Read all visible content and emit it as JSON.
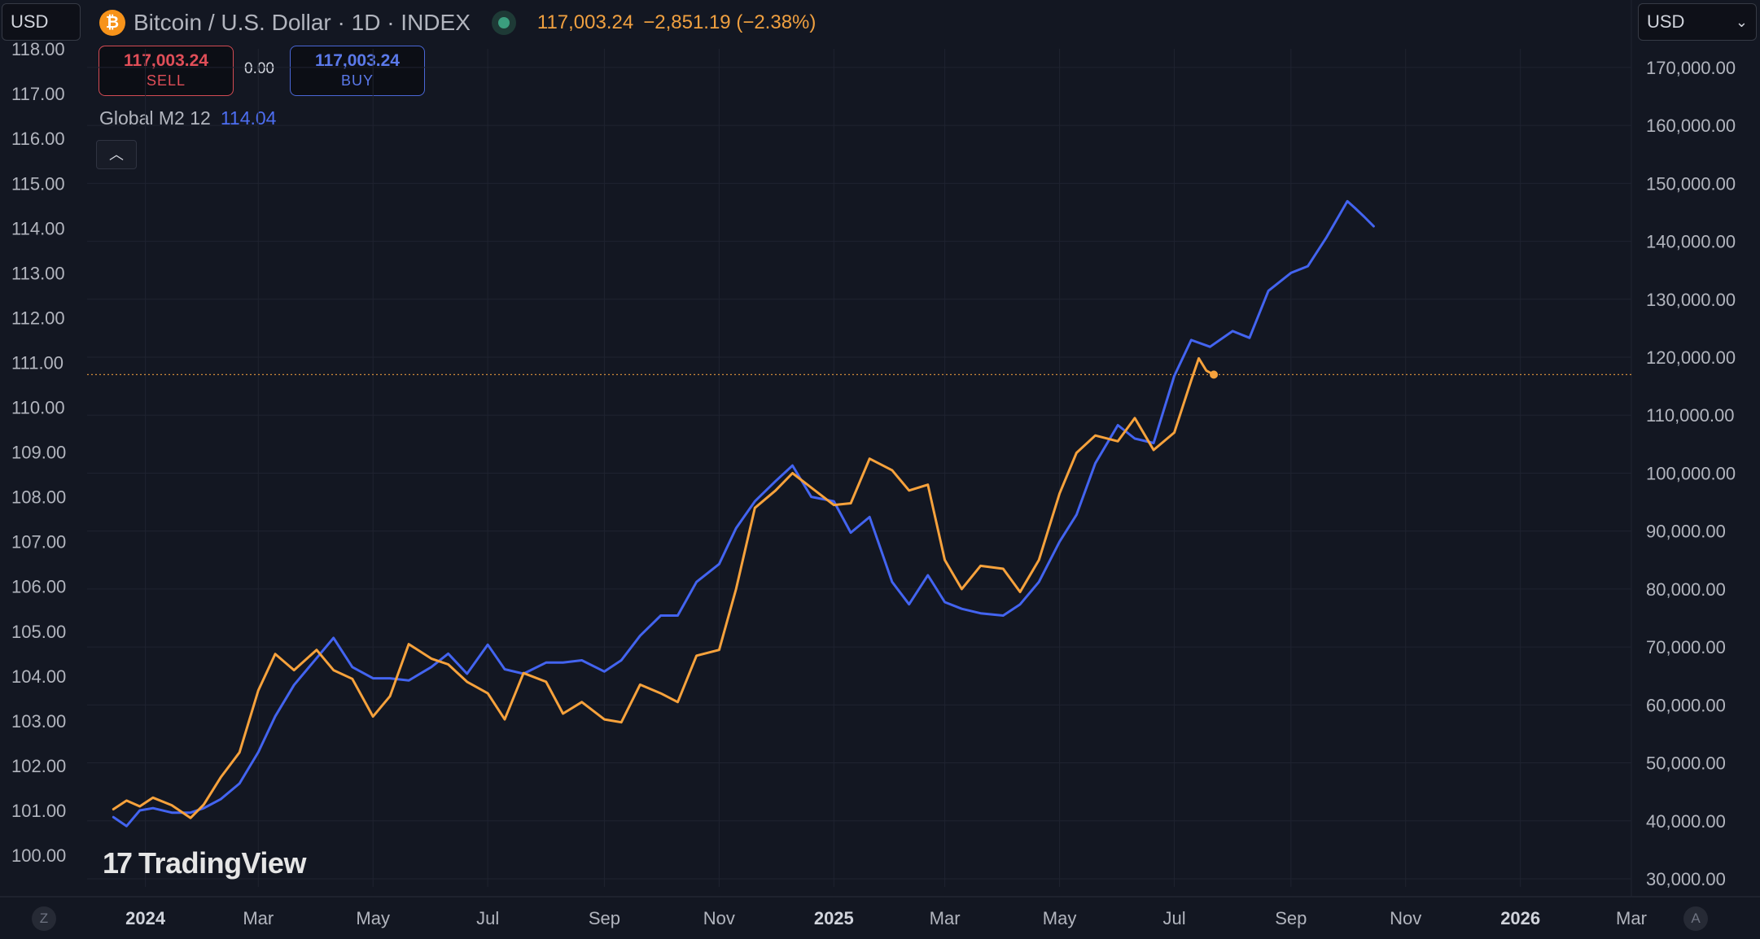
{
  "currency_left": "USD",
  "currency_right": "USD",
  "header": {
    "title": "Bitcoin / U.S. Dollar · 1D · INDEX",
    "btc_icon": "bitcoin-icon",
    "price": "117,003.24",
    "change": "−2,851.19 (−2.38%)"
  },
  "trade": {
    "sell_price": "117,003.24",
    "sell_label": "SELL",
    "spread": "0.00",
    "buy_price": "117,003.24",
    "buy_label": "BUY"
  },
  "indicator": {
    "name": "Global M2 12",
    "value": "114.04"
  },
  "collapse_icon": "chevron-up-icon",
  "logo_text": "TradingView",
  "corner_left": "Z",
  "corner_right": "A",
  "chart_data": {
    "type": "line",
    "background": "#131722",
    "grid": true,
    "y_left": {
      "series": "Global M2 12",
      "ylim": [
        99.4,
        118.1
      ],
      "ticks": [
        "118.00",
        "117.00",
        "116.00",
        "115.00",
        "114.00",
        "113.00",
        "112.00",
        "111.00",
        "110.00",
        "109.00",
        "108.00",
        "107.00",
        "106.00",
        "105.00",
        "104.00",
        "103.00",
        "102.00",
        "101.00",
        "100.00"
      ]
    },
    "y_right": {
      "series": "BTCUSD",
      "ylim": [
        28700,
        178000
      ],
      "ticks": [
        "170,000.00",
        "160,000.00",
        "150,000.00",
        "140,000.00",
        "130,000.00",
        "120,000.00",
        "110,000.00",
        "100,000.00",
        "90,000.00",
        "80,000.00",
        "70,000.00",
        "60,000.00",
        "50,000.00",
        "40,000.00",
        "30,000.00"
      ]
    },
    "x_axis": {
      "labels": [
        {
          "text": "2024",
          "bold": true
        },
        {
          "text": "Mar",
          "bold": false
        },
        {
          "text": "May",
          "bold": false
        },
        {
          "text": "Jul",
          "bold": false
        },
        {
          "text": "Sep",
          "bold": false
        },
        {
          "text": "Nov",
          "bold": false
        },
        {
          "text": "2025",
          "bold": true
        },
        {
          "text": "Mar",
          "bold": false
        },
        {
          "text": "May",
          "bold": false
        },
        {
          "text": "Jul",
          "bold": false
        },
        {
          "text": "Sep",
          "bold": false
        },
        {
          "text": "Nov",
          "bold": false
        },
        {
          "text": "2026",
          "bold": true
        },
        {
          "text": "Mar",
          "bold": false
        }
      ]
    },
    "price_line": 117003.24,
    "series": [
      {
        "key": "m2",
        "color": "#4364f0",
        "axis": "left",
        "points": [
          [
            "2023-12-15",
            100.85
          ],
          [
            "2023-12-22",
            100.65
          ],
          [
            "2023-12-29",
            101.0
          ],
          [
            "2024-01-05",
            101.05
          ],
          [
            "2024-01-15",
            100.95
          ],
          [
            "2024-01-25",
            100.95
          ],
          [
            "2024-02-01",
            101.05
          ],
          [
            "2024-02-10",
            101.25
          ],
          [
            "2024-02-20",
            101.6
          ],
          [
            "2024-03-01",
            102.3
          ],
          [
            "2024-03-10",
            103.1
          ],
          [
            "2024-03-20",
            103.8
          ],
          [
            "2024-04-01",
            104.4
          ],
          [
            "2024-04-10",
            104.85
          ],
          [
            "2024-04-20",
            104.2
          ],
          [
            "2024-05-01",
            103.95
          ],
          [
            "2024-05-10",
            103.95
          ],
          [
            "2024-05-20",
            103.9
          ],
          [
            "2024-06-01",
            104.2
          ],
          [
            "2024-06-10",
            104.5
          ],
          [
            "2024-06-20",
            104.05
          ],
          [
            "2024-07-01",
            104.7
          ],
          [
            "2024-07-10",
            104.15
          ],
          [
            "2024-07-20",
            104.05
          ],
          [
            "2024-08-01",
            104.3
          ],
          [
            "2024-08-10",
            104.3
          ],
          [
            "2024-08-20",
            104.35
          ],
          [
            "2024-09-01",
            104.1
          ],
          [
            "2024-09-10",
            104.35
          ],
          [
            "2024-09-20",
            104.9
          ],
          [
            "2024-10-01",
            105.35
          ],
          [
            "2024-10-10",
            105.35
          ],
          [
            "2024-10-20",
            106.1
          ],
          [
            "2024-11-01",
            106.5
          ],
          [
            "2024-11-10",
            107.3
          ],
          [
            "2024-11-20",
            107.9
          ],
          [
            "2024-12-01",
            108.35
          ],
          [
            "2024-12-10",
            108.7
          ],
          [
            "2024-12-20",
            108.0
          ],
          [
            "2025-01-01",
            107.9
          ],
          [
            "2025-01-10",
            107.2
          ],
          [
            "2025-01-20",
            107.55
          ],
          [
            "2025-02-01",
            106.1
          ],
          [
            "2025-02-10",
            105.6
          ],
          [
            "2025-02-20",
            106.25
          ],
          [
            "2025-03-01",
            105.65
          ],
          [
            "2025-03-10",
            105.5
          ],
          [
            "2025-03-20",
            105.4
          ],
          [
            "2025-04-01",
            105.35
          ],
          [
            "2025-04-10",
            105.6
          ],
          [
            "2025-04-20",
            106.1
          ],
          [
            "2025-05-01",
            107.0
          ],
          [
            "2025-05-10",
            107.6
          ],
          [
            "2025-05-20",
            108.75
          ],
          [
            "2025-06-01",
            109.6
          ],
          [
            "2025-06-10",
            109.3
          ],
          [
            "2025-06-20",
            109.2
          ],
          [
            "2025-07-01",
            110.7
          ],
          [
            "2025-07-10",
            111.5
          ],
          [
            "2025-07-20",
            111.35
          ],
          [
            "2025-08-01",
            111.7
          ],
          [
            "2025-08-10",
            111.55
          ],
          [
            "2025-08-20",
            112.6
          ],
          [
            "2025-09-01",
            113.0
          ],
          [
            "2025-09-10",
            113.15
          ],
          [
            "2025-09-20",
            113.8
          ],
          [
            "2025-10-01",
            114.6
          ],
          [
            "2025-10-05",
            114.45
          ],
          [
            "2025-10-10",
            114.25
          ],
          [
            "2025-10-15",
            114.04
          ]
        ]
      },
      {
        "key": "btc",
        "color": "#f7a23c",
        "axis": "right",
        "points": [
          [
            "2023-12-15",
            42000
          ],
          [
            "2023-12-22",
            43500
          ],
          [
            "2023-12-29",
            42500
          ],
          [
            "2024-01-05",
            44000
          ],
          [
            "2024-01-15",
            42700
          ],
          [
            "2024-01-25",
            40500
          ],
          [
            "2024-02-01",
            42800
          ],
          [
            "2024-02-10",
            47500
          ],
          [
            "2024-02-20",
            51800
          ],
          [
            "2024-03-01",
            62500
          ],
          [
            "2024-03-10",
            68800
          ],
          [
            "2024-03-20",
            66000
          ],
          [
            "2024-04-01",
            69500
          ],
          [
            "2024-04-10",
            66000
          ],
          [
            "2024-04-20",
            64500
          ],
          [
            "2024-05-01",
            58000
          ],
          [
            "2024-05-10",
            61500
          ],
          [
            "2024-05-20",
            70500
          ],
          [
            "2024-06-01",
            68000
          ],
          [
            "2024-06-10",
            67000
          ],
          [
            "2024-06-20",
            64000
          ],
          [
            "2024-07-01",
            62000
          ],
          [
            "2024-07-10",
            57500
          ],
          [
            "2024-07-20",
            65500
          ],
          [
            "2024-08-01",
            64000
          ],
          [
            "2024-08-10",
            58500
          ],
          [
            "2024-08-20",
            60500
          ],
          [
            "2024-09-01",
            57500
          ],
          [
            "2024-09-10",
            57000
          ],
          [
            "2024-09-20",
            63500
          ],
          [
            "2024-10-01",
            62000
          ],
          [
            "2024-10-10",
            60500
          ],
          [
            "2024-10-20",
            68500
          ],
          [
            "2024-11-01",
            69500
          ],
          [
            "2024-11-10",
            80000
          ],
          [
            "2024-11-20",
            94000
          ],
          [
            "2024-12-01",
            97000
          ],
          [
            "2024-12-10",
            100000
          ],
          [
            "2024-12-20",
            97500
          ],
          [
            "2025-01-01",
            94500
          ],
          [
            "2025-01-10",
            94800
          ],
          [
            "2025-01-20",
            102500
          ],
          [
            "2025-02-01",
            100500
          ],
          [
            "2025-02-10",
            97000
          ],
          [
            "2025-02-20",
            98000
          ],
          [
            "2025-03-01",
            85000
          ],
          [
            "2025-03-10",
            80000
          ],
          [
            "2025-03-20",
            84000
          ],
          [
            "2025-04-01",
            83500
          ],
          [
            "2025-04-10",
            79500
          ],
          [
            "2025-04-20",
            85000
          ],
          [
            "2025-05-01",
            96500
          ],
          [
            "2025-05-10",
            103500
          ],
          [
            "2025-05-20",
            106500
          ],
          [
            "2025-06-01",
            105500
          ],
          [
            "2025-06-10",
            109500
          ],
          [
            "2025-06-20",
            104000
          ],
          [
            "2025-07-01",
            107000
          ],
          [
            "2025-07-10",
            116000
          ],
          [
            "2025-07-14",
            119800
          ],
          [
            "2025-07-18",
            117700
          ],
          [
            "2025-07-22",
            117003.24
          ]
        ]
      }
    ]
  }
}
